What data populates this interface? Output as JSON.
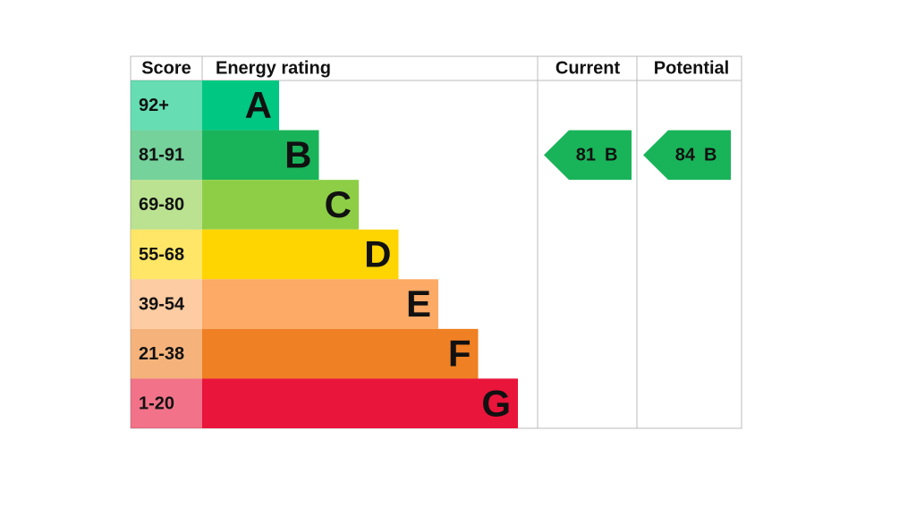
{
  "header": {
    "score": "Score",
    "rating": "Energy rating",
    "current": "Current",
    "potential": "Potential"
  },
  "bands": [
    {
      "score": "92+",
      "letter": "A",
      "color": "#00c781"
    },
    {
      "score": "81-91",
      "letter": "B",
      "color": "#19b459"
    },
    {
      "score": "69-80",
      "letter": "C",
      "color": "#8dce46"
    },
    {
      "score": "55-68",
      "letter": "D",
      "color": "#ffd500"
    },
    {
      "score": "39-54",
      "letter": "E",
      "color": "#fcaa65"
    },
    {
      "score": "21-38",
      "letter": "F",
      "color": "#ef8023"
    },
    {
      "score": "1-20",
      "letter": "G",
      "color": "#e9153b"
    }
  ],
  "current": {
    "value": "81",
    "letter": "B"
  },
  "potential": {
    "value": "84",
    "letter": "B"
  }
}
